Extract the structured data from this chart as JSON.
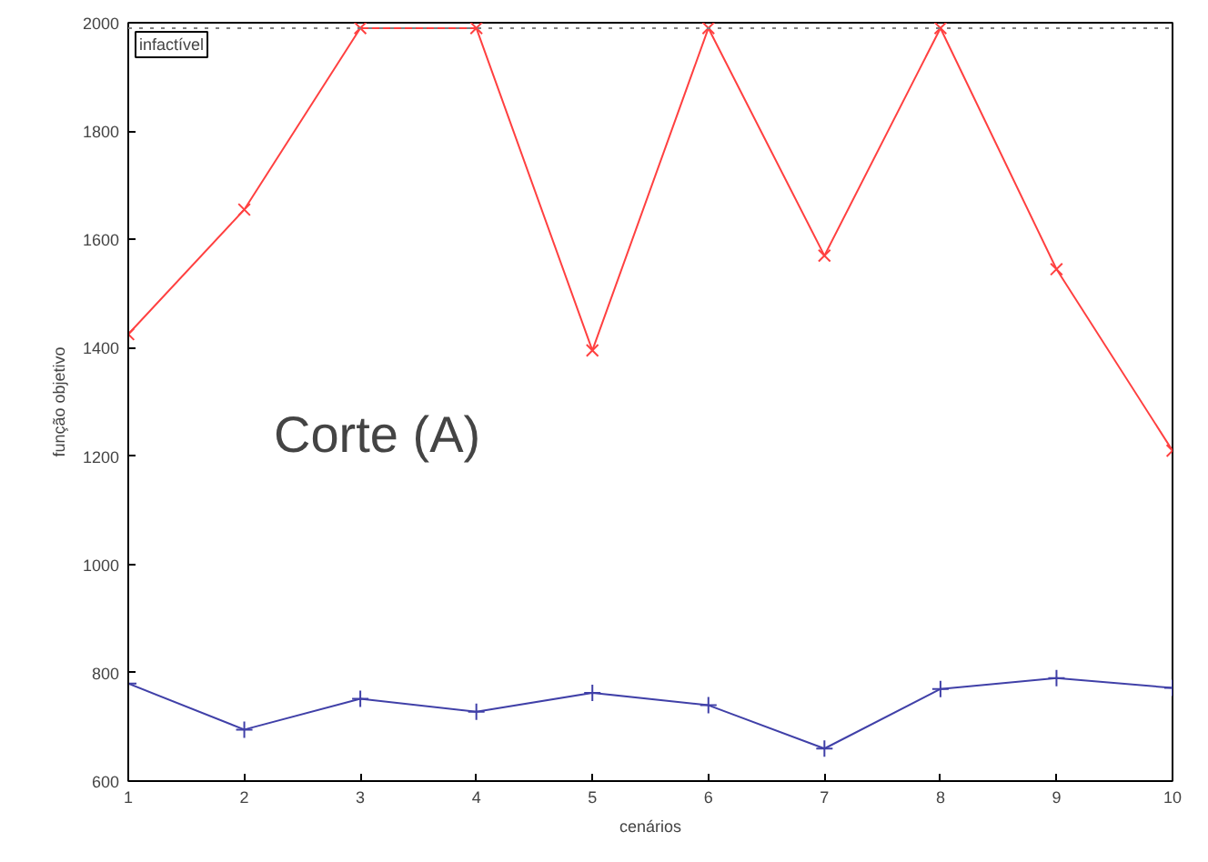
{
  "chart_data": {
    "type": "line",
    "xlabel": "cenários",
    "ylabel": "função objetivo",
    "x": [
      1,
      2,
      3,
      4,
      5,
      6,
      7,
      8,
      9,
      10
    ],
    "series": [
      {
        "color": "#ff4040",
        "marker": "x",
        "values": [
          1425,
          1655,
          1990,
          1990,
          1395,
          1990,
          1570,
          1990,
          1545,
          1210
        ]
      },
      {
        "color": "#4040a8",
        "marker": "cross",
        "values": [
          780,
          695,
          752,
          728,
          763,
          740,
          660,
          770,
          790,
          772
        ]
      }
    ],
    "xlim": [
      1,
      10
    ],
    "xticks": [
      1,
      2,
      3,
      4,
      5,
      6,
      7,
      8,
      9,
      10
    ],
    "ylim": [
      600,
      2000
    ],
    "yticks": [
      600,
      800,
      1000,
      1200,
      1400,
      1600,
      1800,
      2000
    ],
    "grid": false,
    "line_style": "solid",
    "ref_lines": [
      {
        "axis": "y",
        "value": 1990,
        "label": "infactível",
        "color": "#808080",
        "line_style": "dotted"
      }
    ],
    "annotations": [
      "Corte (A)"
    ]
  }
}
